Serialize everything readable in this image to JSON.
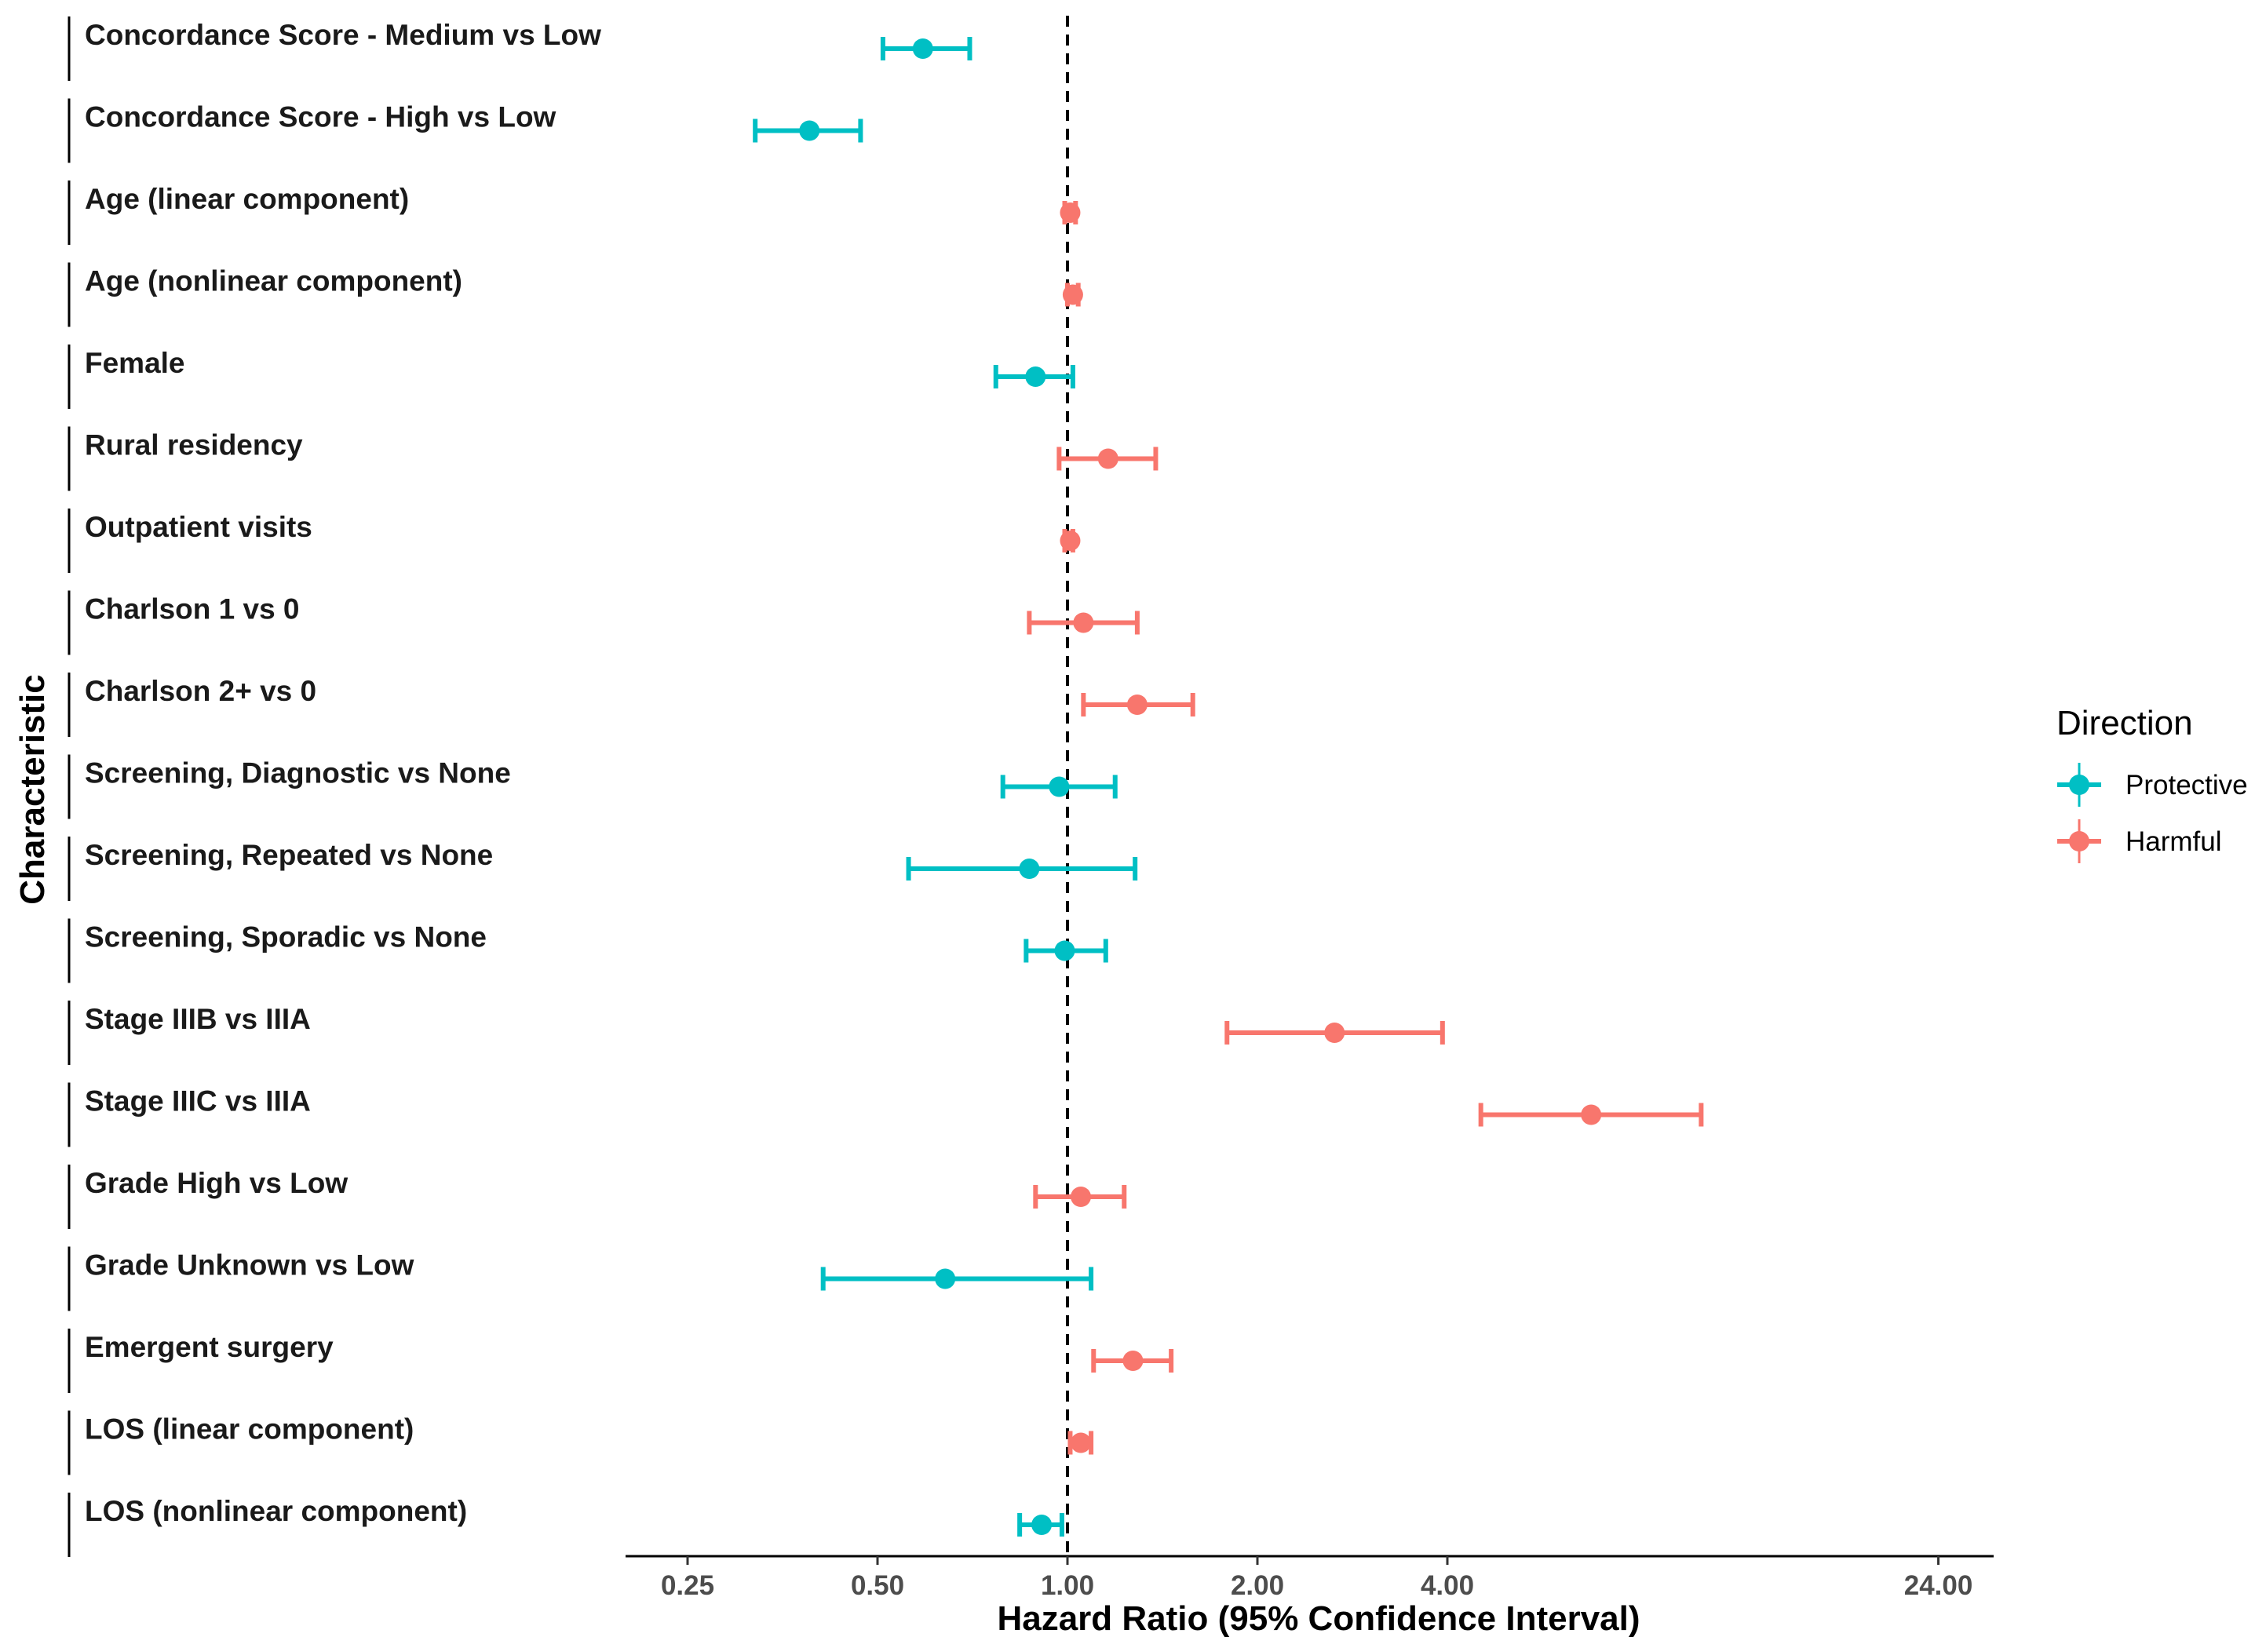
{
  "chart_data": {
    "type": "forest",
    "xlabel": "Hazard Ratio (95% Confidence Interval)",
    "ylabel": "Characteristic",
    "x_scale": "log2",
    "xlim": [
      0.19,
      37
    ],
    "x_ticks": [
      0.25,
      0.5,
      1.0,
      2.0,
      4.0,
      24.0
    ],
    "x_tick_labels": [
      "0.25",
      "0.50",
      "1.00",
      "2.00",
      "4.00",
      "24.00"
    ],
    "reference_line": 1.0,
    "legend": {
      "title": "Direction",
      "position": "right",
      "entries": [
        {
          "name": "Protective",
          "color": "#00BFC4"
        },
        {
          "name": "Harmful",
          "color": "#F8766D"
        }
      ]
    },
    "rows": [
      {
        "label": "Concordance Score - Medium vs Low",
        "hr": 0.59,
        "lower": 0.51,
        "upper": 0.7,
        "direction": "Protective"
      },
      {
        "label": "Concordance Score - High vs Low",
        "hr": 0.39,
        "lower": 0.32,
        "upper": 0.47,
        "direction": "Protective"
      },
      {
        "label": "Age (linear component)",
        "hr": 1.01,
        "lower": 0.99,
        "upper": 1.03,
        "direction": "Harmful"
      },
      {
        "label": "Age (nonlinear component)",
        "hr": 1.02,
        "lower": 1.0,
        "upper": 1.04,
        "direction": "Harmful"
      },
      {
        "label": "Female",
        "hr": 0.89,
        "lower": 0.77,
        "upper": 1.02,
        "direction": "Protective"
      },
      {
        "label": "Rural residency",
        "hr": 1.16,
        "lower": 0.97,
        "upper": 1.38,
        "direction": "Harmful"
      },
      {
        "label": "Outpatient visits",
        "hr": 1.01,
        "lower": 0.99,
        "upper": 1.02,
        "direction": "Harmful"
      },
      {
        "label": "Charlson 1 vs 0",
        "hr": 1.06,
        "lower": 0.87,
        "upper": 1.29,
        "direction": "Harmful"
      },
      {
        "label": "Charlson 2+ vs 0",
        "hr": 1.29,
        "lower": 1.06,
        "upper": 1.58,
        "direction": "Harmful"
      },
      {
        "label": "Screening, Diagnostic vs None",
        "hr": 0.97,
        "lower": 0.79,
        "upper": 1.19,
        "direction": "Protective"
      },
      {
        "label": "Screening, Repeated vs None",
        "hr": 0.87,
        "lower": 0.56,
        "upper": 1.28,
        "direction": "Protective"
      },
      {
        "label": "Screening, Sporadic vs None",
        "hr": 0.99,
        "lower": 0.86,
        "upper": 1.15,
        "direction": "Protective"
      },
      {
        "label": "Stage IIIB vs IIIA",
        "hr": 2.65,
        "lower": 1.79,
        "upper": 3.93,
        "direction": "Harmful"
      },
      {
        "label": "Stage IIIC vs IIIA",
        "hr": 6.76,
        "lower": 4.52,
        "upper": 10.1,
        "direction": "Harmful"
      },
      {
        "label": "Grade High vs Low",
        "hr": 1.05,
        "lower": 0.89,
        "upper": 1.23,
        "direction": "Harmful"
      },
      {
        "label": "Grade Unknown vs Low",
        "hr": 0.64,
        "lower": 0.41,
        "upper": 1.09,
        "direction": "Protective"
      },
      {
        "label": "Emergent surgery",
        "hr": 1.27,
        "lower": 1.1,
        "upper": 1.46,
        "direction": "Harmful"
      },
      {
        "label": "LOS (linear component)",
        "hr": 1.05,
        "lower": 1.01,
        "upper": 1.09,
        "direction": "Harmful"
      },
      {
        "label": "LOS (nonlinear component)",
        "hr": 0.91,
        "lower": 0.84,
        "upper": 0.98,
        "direction": "Protective"
      }
    ]
  }
}
